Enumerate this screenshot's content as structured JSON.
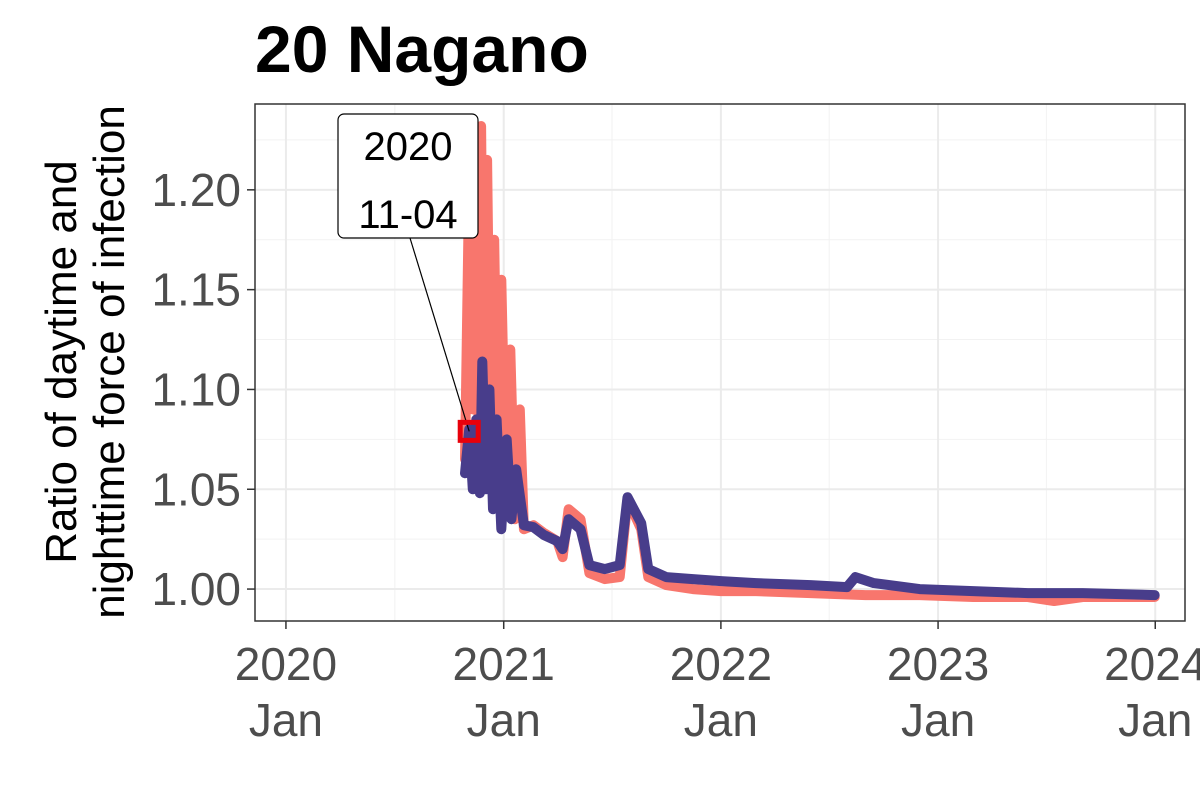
{
  "chart_data": {
    "type": "line",
    "title": "20 Nagano",
    "ylabel_lines": [
      "Ratio of daytime and",
      "nighttime force of infection"
    ],
    "xlim": [
      "2019-11-10",
      "2024-02-20"
    ],
    "ylim": [
      0.984,
      1.243
    ],
    "yticks": [
      1.0,
      1.05,
      1.1,
      1.15,
      1.2
    ],
    "ytick_labels": [
      "1.00",
      "1.05",
      "1.10",
      "1.15",
      "1.20"
    ],
    "xticks": [
      {
        "date": "2020-01-01",
        "year": "2020",
        "month": "Jan"
      },
      {
        "date": "2021-01-01",
        "year": "2021",
        "month": "Jan"
      },
      {
        "date": "2022-01-01",
        "year": "2022",
        "month": "Jan"
      },
      {
        "date": "2023-01-01",
        "year": "2023",
        "month": "Jan"
      },
      {
        "date": "2024-01-01",
        "year": "2024",
        "month": "Jan"
      }
    ],
    "grid": true,
    "legend": "none",
    "series": [
      {
        "color": "#f8766d",
        "points": [
          [
            "2020-10-28",
            1.065
          ],
          [
            "2020-11-04",
            1.205
          ],
          [
            "2020-11-10",
            1.09
          ],
          [
            "2020-11-14",
            1.185
          ],
          [
            "2020-11-20",
            1.08
          ],
          [
            "2020-11-24",
            1.232
          ],
          [
            "2020-11-28",
            1.1
          ],
          [
            "2020-12-04",
            1.215
          ],
          [
            "2020-12-10",
            1.07
          ],
          [
            "2020-12-16",
            1.175
          ],
          [
            "2020-12-22",
            1.055
          ],
          [
            "2020-12-28",
            1.155
          ],
          [
            "2021-01-05",
            1.045
          ],
          [
            "2021-01-12",
            1.12
          ],
          [
            "2021-01-20",
            1.035
          ],
          [
            "2021-01-28",
            1.09
          ],
          [
            "2021-02-04",
            1.03
          ],
          [
            "2021-02-20",
            1.032
          ],
          [
            "2021-03-10",
            1.028
          ],
          [
            "2021-04-01",
            1.024
          ],
          [
            "2021-04-10",
            1.016
          ],
          [
            "2021-04-20",
            1.04
          ],
          [
            "2021-05-10",
            1.035
          ],
          [
            "2021-05-25",
            1.008
          ],
          [
            "2021-06-20",
            1.005
          ],
          [
            "2021-07-15",
            1.006
          ],
          [
            "2021-07-28",
            1.045
          ],
          [
            "2021-08-20",
            1.03
          ],
          [
            "2021-09-01",
            1.006
          ],
          [
            "2021-10-01",
            1.002
          ],
          [
            "2021-11-15",
            1.0
          ],
          [
            "2022-01-01",
            0.999
          ],
          [
            "2022-03-01",
            0.999
          ],
          [
            "2022-06-01",
            0.998
          ],
          [
            "2022-09-01",
            0.997
          ],
          [
            "2022-12-01",
            0.997
          ],
          [
            "2023-03-01",
            0.996
          ],
          [
            "2023-06-01",
            0.996
          ],
          [
            "2023-07-15",
            0.994
          ],
          [
            "2023-09-01",
            0.996
          ],
          [
            "2023-12-31",
            0.996
          ]
        ]
      },
      {
        "color": "#483d8b",
        "points": [
          [
            "2020-10-28",
            1.058
          ],
          [
            "2020-11-04",
            1.08
          ],
          [
            "2020-11-10",
            1.05
          ],
          [
            "2020-11-16",
            1.085
          ],
          [
            "2020-11-22",
            1.048
          ],
          [
            "2020-11-26",
            1.114
          ],
          [
            "2020-12-02",
            1.05
          ],
          [
            "2020-12-08",
            1.1
          ],
          [
            "2020-12-14",
            1.04
          ],
          [
            "2020-12-20",
            1.085
          ],
          [
            "2020-12-28",
            1.03
          ],
          [
            "2021-01-06",
            1.075
          ],
          [
            "2021-01-14",
            1.035
          ],
          [
            "2021-01-22",
            1.06
          ],
          [
            "2021-02-04",
            1.032
          ],
          [
            "2021-02-20",
            1.031
          ],
          [
            "2021-03-10",
            1.027
          ],
          [
            "2021-04-01",
            1.024
          ],
          [
            "2021-04-10",
            1.02
          ],
          [
            "2021-04-20",
            1.035
          ],
          [
            "2021-05-10",
            1.03
          ],
          [
            "2021-05-25",
            1.012
          ],
          [
            "2021-06-20",
            1.01
          ],
          [
            "2021-07-15",
            1.012
          ],
          [
            "2021-07-28",
            1.046
          ],
          [
            "2021-08-20",
            1.033
          ],
          [
            "2021-09-01",
            1.01
          ],
          [
            "2021-10-01",
            1.006
          ],
          [
            "2021-11-15",
            1.005
          ],
          [
            "2022-01-01",
            1.004
          ],
          [
            "2022-03-01",
            1.003
          ],
          [
            "2022-06-01",
            1.002
          ],
          [
            "2022-08-01",
            1.001
          ],
          [
            "2022-08-15",
            1.006
          ],
          [
            "2022-09-15",
            1.003
          ],
          [
            "2022-12-01",
            1.0
          ],
          [
            "2023-03-01",
            0.999
          ],
          [
            "2023-06-01",
            0.998
          ],
          [
            "2023-09-01",
            0.998
          ],
          [
            "2023-12-31",
            0.997
          ]
        ]
      }
    ],
    "annotation": {
      "date": "2020-11-04",
      "value": 1.079,
      "text_lines": [
        "2020",
        "11-04"
      ],
      "marker_color": "#e8000b"
    }
  }
}
